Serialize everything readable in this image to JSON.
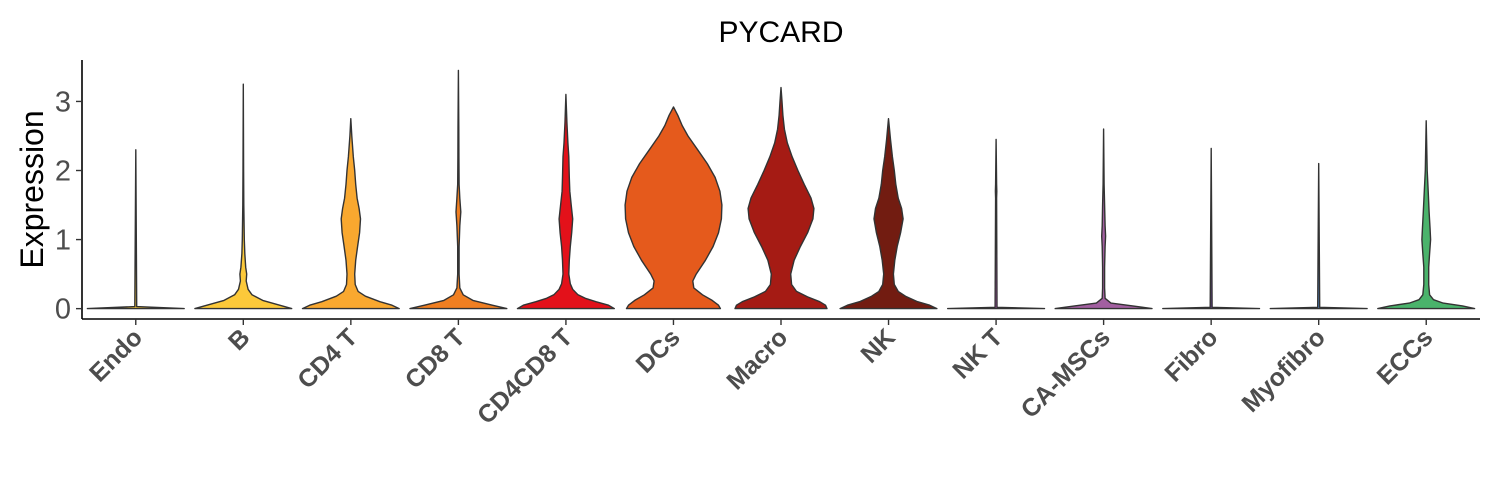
{
  "chart_data": {
    "type": "violin",
    "title": "PYCARD",
    "xlabel": "",
    "ylabel": "Expression",
    "ylim": [
      -0.15,
      3.6
    ],
    "yticks": [
      0,
      1,
      2,
      3
    ],
    "grid": false,
    "legend": "none",
    "categories": [
      "Endo",
      "B",
      "CD4 T",
      "CD8 T",
      "CD4CD8 T",
      "DCs",
      "Macro",
      "NK",
      "NK T",
      "CA-MSCs",
      "Fibro",
      "Myofibro",
      "ECCs"
    ],
    "series": [
      {
        "category": "Endo",
        "color": "#f4c430",
        "max": 2.3,
        "profile": [
          [
            0,
            1.0
          ],
          [
            0.03,
            0.02
          ],
          [
            2.3,
            0.0
          ]
        ]
      },
      {
        "category": "B",
        "color": "#fcc93a",
        "max": 3.25,
        "profile": [
          [
            0,
            1.0
          ],
          [
            0.05,
            0.75
          ],
          [
            0.12,
            0.4
          ],
          [
            0.2,
            0.18
          ],
          [
            0.28,
            0.1
          ],
          [
            0.4,
            0.06
          ],
          [
            0.5,
            0.07
          ],
          [
            0.6,
            0.05
          ],
          [
            0.8,
            0.03
          ],
          [
            1.0,
            0.02
          ],
          [
            1.5,
            0.01
          ],
          [
            2.0,
            0.006
          ],
          [
            3.25,
            0.0
          ]
        ]
      },
      {
        "category": "CD4 T",
        "color": "#f9a82f",
        "max": 2.75,
        "profile": [
          [
            0,
            1.0
          ],
          [
            0.05,
            0.85
          ],
          [
            0.1,
            0.6
          ],
          [
            0.18,
            0.3
          ],
          [
            0.25,
            0.15
          ],
          [
            0.35,
            0.09
          ],
          [
            0.5,
            0.08
          ],
          [
            0.7,
            0.1
          ],
          [
            0.9,
            0.14
          ],
          [
            1.1,
            0.18
          ],
          [
            1.3,
            0.2
          ],
          [
            1.45,
            0.17
          ],
          [
            1.6,
            0.13
          ],
          [
            1.8,
            0.1
          ],
          [
            2.0,
            0.08
          ],
          [
            2.2,
            0.05
          ],
          [
            2.5,
            0.02
          ],
          [
            2.75,
            0.0
          ]
        ]
      },
      {
        "category": "CD8 T",
        "color": "#f07f22",
        "max": 3.45,
        "profile": [
          [
            0,
            1.0
          ],
          [
            0.05,
            0.7
          ],
          [
            0.12,
            0.3
          ],
          [
            0.2,
            0.1
          ],
          [
            0.3,
            0.03
          ],
          [
            0.5,
            0.015
          ],
          [
            0.9,
            0.015
          ],
          [
            1.2,
            0.03
          ],
          [
            1.4,
            0.05
          ],
          [
            1.6,
            0.03
          ],
          [
            1.8,
            0.015
          ],
          [
            2.2,
            0.01
          ],
          [
            2.6,
            0.008
          ],
          [
            3.45,
            0.0
          ]
        ]
      },
      {
        "category": "CD4CD8 T",
        "color": "#e3111a",
        "max": 3.1,
        "profile": [
          [
            0,
            1.0
          ],
          [
            0.05,
            0.88
          ],
          [
            0.1,
            0.62
          ],
          [
            0.15,
            0.4
          ],
          [
            0.2,
            0.25
          ],
          [
            0.28,
            0.14
          ],
          [
            0.36,
            0.09
          ],
          [
            0.5,
            0.06
          ],
          [
            0.7,
            0.07
          ],
          [
            0.9,
            0.09
          ],
          [
            1.1,
            0.12
          ],
          [
            1.3,
            0.14
          ],
          [
            1.5,
            0.11
          ],
          [
            1.7,
            0.08
          ],
          [
            1.9,
            0.07
          ],
          [
            2.2,
            0.06
          ],
          [
            2.4,
            0.04
          ],
          [
            2.7,
            0.02
          ],
          [
            3.1,
            0.0
          ]
        ]
      },
      {
        "category": "DCs",
        "color": "#e55a1c",
        "max": 2.92,
        "profile": [
          [
            0,
            0.97
          ],
          [
            0.05,
            0.93
          ],
          [
            0.12,
            0.8
          ],
          [
            0.2,
            0.6
          ],
          [
            0.3,
            0.42
          ],
          [
            0.4,
            0.4
          ],
          [
            0.5,
            0.47
          ],
          [
            0.7,
            0.66
          ],
          [
            0.9,
            0.82
          ],
          [
            1.1,
            0.93
          ],
          [
            1.3,
            0.99
          ],
          [
            1.5,
            1.0
          ],
          [
            1.7,
            0.96
          ],
          [
            1.9,
            0.86
          ],
          [
            2.1,
            0.7
          ],
          [
            2.3,
            0.5
          ],
          [
            2.5,
            0.3
          ],
          [
            2.65,
            0.18
          ],
          [
            2.8,
            0.09
          ],
          [
            2.92,
            0.0
          ]
        ]
      },
      {
        "category": "Macro",
        "color": "#a51b14",
        "max": 3.2,
        "profile": [
          [
            0,
            0.95
          ],
          [
            0.05,
            0.92
          ],
          [
            0.1,
            0.8
          ],
          [
            0.17,
            0.55
          ],
          [
            0.25,
            0.32
          ],
          [
            0.35,
            0.22
          ],
          [
            0.5,
            0.2
          ],
          [
            0.7,
            0.27
          ],
          [
            0.9,
            0.4
          ],
          [
            1.1,
            0.55
          ],
          [
            1.3,
            0.66
          ],
          [
            1.45,
            0.68
          ],
          [
            1.6,
            0.62
          ],
          [
            1.8,
            0.48
          ],
          [
            2.0,
            0.35
          ],
          [
            2.2,
            0.23
          ],
          [
            2.4,
            0.13
          ],
          [
            2.6,
            0.07
          ],
          [
            2.8,
            0.04
          ],
          [
            3.0,
            0.02
          ],
          [
            3.2,
            0.0
          ]
        ]
      },
      {
        "category": "NK",
        "color": "#721c11",
        "max": 2.75,
        "profile": [
          [
            0,
            1.0
          ],
          [
            0.05,
            0.85
          ],
          [
            0.1,
            0.6
          ],
          [
            0.18,
            0.35
          ],
          [
            0.25,
            0.2
          ],
          [
            0.35,
            0.12
          ],
          [
            0.5,
            0.1
          ],
          [
            0.7,
            0.13
          ],
          [
            0.9,
            0.18
          ],
          [
            1.1,
            0.25
          ],
          [
            1.3,
            0.3
          ],
          [
            1.45,
            0.27
          ],
          [
            1.6,
            0.2
          ],
          [
            1.8,
            0.15
          ],
          [
            2.0,
            0.12
          ],
          [
            2.2,
            0.08
          ],
          [
            2.45,
            0.04
          ],
          [
            2.75,
            0.0
          ]
        ]
      },
      {
        "category": "NK T",
        "color": "#b84fbb",
        "max": 2.45,
        "profile": [
          [
            0,
            1.0
          ],
          [
            0.02,
            0.02
          ],
          [
            1.6,
            0.01
          ],
          [
            1.7,
            0.015
          ],
          [
            1.8,
            0.01
          ],
          [
            2.45,
            0.0
          ]
        ]
      },
      {
        "category": "CA-MSCs",
        "color": "#a25fa0",
        "max": 2.6,
        "profile": [
          [
            0,
            1.0
          ],
          [
            0.04,
            0.6
          ],
          [
            0.08,
            0.15
          ],
          [
            0.15,
            0.03
          ],
          [
            0.3,
            0.02
          ],
          [
            0.6,
            0.02
          ],
          [
            0.9,
            0.03
          ],
          [
            1.05,
            0.04
          ],
          [
            1.2,
            0.03
          ],
          [
            1.5,
            0.02
          ],
          [
            1.8,
            0.01
          ],
          [
            2.6,
            0.0
          ]
        ]
      },
      {
        "category": "Fibro",
        "color": "#6a3d9a",
        "max": 2.32,
        "profile": [
          [
            0,
            1.0
          ],
          [
            0.02,
            0.02
          ],
          [
            2.32,
            0.0
          ]
        ]
      },
      {
        "category": "Myofibro",
        "color": "#4b7fbf",
        "max": 2.1,
        "profile": [
          [
            0,
            1.0
          ],
          [
            0.02,
            0.02
          ],
          [
            2.1,
            0.0
          ]
        ]
      },
      {
        "category": "ECCs",
        "color": "#4ab36b",
        "max": 2.72,
        "profile": [
          [
            0,
            1.0
          ],
          [
            0.04,
            0.75
          ],
          [
            0.08,
            0.35
          ],
          [
            0.13,
            0.15
          ],
          [
            0.2,
            0.07
          ],
          [
            0.35,
            0.05
          ],
          [
            0.6,
            0.05
          ],
          [
            0.8,
            0.07
          ],
          [
            1.0,
            0.09
          ],
          [
            1.15,
            0.08
          ],
          [
            1.4,
            0.06
          ],
          [
            1.7,
            0.04
          ],
          [
            2.0,
            0.02
          ],
          [
            2.72,
            0.0
          ]
        ]
      }
    ]
  }
}
